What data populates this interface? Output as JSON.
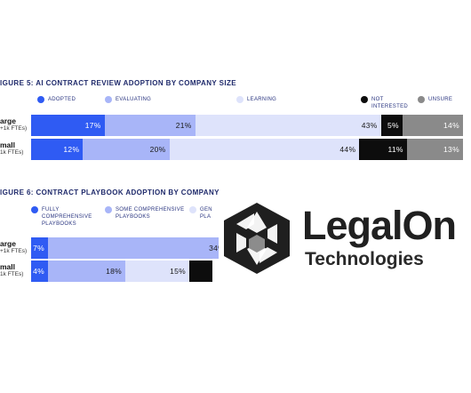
{
  "chart_data": [
    {
      "type": "bar",
      "title": "IGURE 5: AI CONTRACT REVIEW ADOPTION BY COMPANY SIZE",
      "legend": [
        "ADOPTED",
        "EVALUATING",
        "LEARNING",
        "NOT INTERESTED",
        "UNSURE"
      ],
      "categories": [
        {
          "label": "arge",
          "sublabel": "+1k FTEs)"
        },
        {
          "label": "mall",
          "sublabel": "1k FTEs)"
        }
      ],
      "series": [
        {
          "name": "ADOPTED",
          "values": [
            17,
            12
          ],
          "color": "#2f5bf3",
          "text_color": "#ffffff"
        },
        {
          "name": "EVALUATING",
          "values": [
            21,
            20
          ],
          "color": "#a8b5f8",
          "text_color": "#1a1a1a"
        },
        {
          "name": "LEARNING",
          "values": [
            43,
            44
          ],
          "color": "#dee3fb",
          "text_color": "#1a1a1a"
        },
        {
          "name": "NOT INTERESTED",
          "values": [
            5,
            11
          ],
          "color": "#0d0d0d",
          "text_color": "#ffffff"
        },
        {
          "name": "UNSURE",
          "values": [
            14,
            13
          ],
          "color": "#8a8a8a",
          "text_color": "#ffffff"
        }
      ],
      "value_suffix": "%",
      "xlim": [
        0,
        100
      ]
    },
    {
      "type": "bar",
      "title": "IGURE 6: CONTRACT PLAYBOOK ADOPTION BY COMPANY",
      "legend": [
        "FULLY COMPREHENSIVE PLAYBOOKS",
        "SOME COMPREHENSIVE PLAYBOOKS",
        "GEN PLA"
      ],
      "categories": [
        {
          "label": "arge",
          "sublabel": "+1k FTEs)"
        },
        {
          "label": "mall",
          "sublabel": "1k FTEs)"
        }
      ],
      "series": [
        {
          "name": "FULLY COMPREHENSIVE PLAYBOOKS",
          "values": [
            7,
            4
          ],
          "color": "#2f5bf3",
          "text_color": "#ffffff"
        },
        {
          "name": "SOME COMPREHENSIVE PLAYBOOKS",
          "values": [
            34,
            18
          ],
          "color": "#a8b5f8",
          "text_color": "#1a1a1a"
        },
        {
          "name": "GEN PLA",
          "values": [
            null,
            15
          ],
          "color": "#dee3fb",
          "text_color": "#1a1a1a"
        },
        {
          "name": "",
          "values": [
            null,
            null
          ],
          "color": "#0d0d0d",
          "text_color": "#ffffff"
        }
      ],
      "value_suffix": "%",
      "xlim": [
        0,
        100
      ]
    }
  ],
  "logo": {
    "line1": "LegalOn",
    "line2": "Technologies",
    "color": "#202020"
  }
}
